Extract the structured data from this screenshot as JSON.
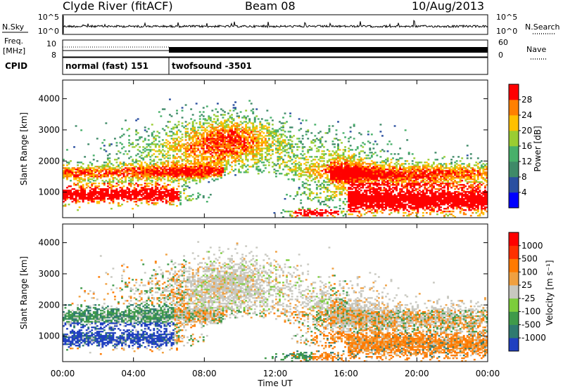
{
  "header": {
    "station": "Clyde River (fitACF)",
    "beam": "Beam 08",
    "date": "10/Aug/2013"
  },
  "noise_panel": {
    "left_label": "N.Sky",
    "right_label": "N.Search",
    "left_ticks": [
      "10^5",
      "10^0"
    ],
    "right_ticks": [
      "10^5",
      "10^0"
    ]
  },
  "freq_panel": {
    "left_label_1": "Freq.",
    "left_label_2": "[MHz]",
    "left_ticks": [
      "10",
      "8"
    ],
    "right_label": "Nave",
    "right_ticks": [
      "60",
      "0"
    ]
  },
  "cpid_panel": {
    "label": "CPID",
    "segments": [
      {
        "label": "normal (fast) 151",
        "start_hour": 0,
        "end_hour": 6
      },
      {
        "label": "twofsound -3501",
        "start_hour": 6,
        "end_hour": 24
      }
    ]
  },
  "time_axis": {
    "label": "Time UT",
    "tick_labels": [
      "00:00",
      "04:00",
      "08:00",
      "12:00",
      "16:00",
      "20:00",
      "00:00"
    ],
    "tick_hours": [
      0,
      4,
      8,
      12,
      16,
      20,
      24
    ]
  },
  "chart_data": [
    {
      "type": "heatmap",
      "title": "Power",
      "xlabel": "Time UT",
      "ylabel": "Slant Range [km]",
      "xlim_hours": [
        0,
        24
      ],
      "ylim": [
        180,
        4600
      ],
      "y_tick_values": [
        1000,
        2000,
        3000,
        4000
      ],
      "y_tick_labels": [
        "1000",
        "2000",
        "3000",
        "4000"
      ],
      "colorbar": {
        "label": "Power [dB]",
        "tick_labels": [
          "4",
          "8",
          "12",
          "16",
          "20",
          "24",
          "28"
        ],
        "tick_values": [
          4,
          8,
          12,
          16,
          20,
          24,
          28
        ],
        "range": [
          0,
          32
        ],
        "colors": [
          "#0000ff",
          "#2a4fa0",
          "#3f8a68",
          "#48b06a",
          "#9acd32",
          "#ffc000",
          "#ff8000",
          "#ff0000"
        ]
      }
    },
    {
      "type": "heatmap",
      "title": "Velocity",
      "xlabel": "Time UT",
      "ylabel": "Slant Range [km]",
      "xlim_hours": [
        0,
        24
      ],
      "ylim": [
        180,
        4600
      ],
      "y_tick_values": [
        1000,
        2000,
        3000,
        4000
      ],
      "y_tick_labels": [
        "1000",
        "2000",
        "3000",
        "4000"
      ],
      "colorbar": {
        "label": "Velocity [m s⁻¹]",
        "tick_labels": [
          "1000",
          "500",
          "100",
          "25",
          "-25",
          "-100",
          "-500",
          "-1000"
        ],
        "colors": [
          "#2040c0",
          "#2f7a70",
          "#3f9a4a",
          "#7ccd3c",
          "#c8c8c0",
          "#f0a040",
          "#ff7a00",
          "#ff3000",
          "#ff0000"
        ]
      }
    }
  ]
}
